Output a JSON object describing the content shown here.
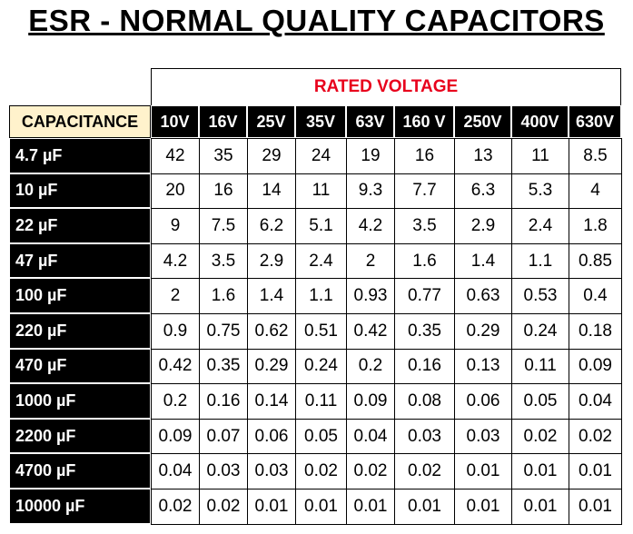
{
  "header": {
    "title": "ESR - NORMAL QUALITY CAPACITORS"
  },
  "table": {
    "group_header": "RATED VOLTAGE",
    "corner": "CAPACITANCE",
    "columns": [
      "10V",
      "16V",
      "25V",
      "35V",
      "63V",
      "160 V",
      "250V",
      "400V",
      "630V"
    ],
    "rows": [
      [
        "4.7 µF",
        42,
        35,
        29,
        24,
        19,
        16,
        13,
        11,
        8.5
      ],
      [
        "10 µF",
        20,
        16,
        14,
        11,
        9.3,
        7.7,
        6.3,
        5.3,
        4
      ],
      [
        "22 µF",
        9,
        7.5,
        6.2,
        5.1,
        4.2,
        3.5,
        2.9,
        2.4,
        1.8
      ],
      [
        "47 µF",
        4.2,
        3.5,
        2.9,
        2.4,
        2,
        1.6,
        1.4,
        1.1,
        0.85
      ],
      [
        "100 µF",
        2,
        1.6,
        1.4,
        1.1,
        0.93,
        0.77,
        0.63,
        0.53,
        0.4
      ],
      [
        "220 µF",
        0.9,
        0.75,
        0.62,
        0.51,
        0.42,
        0.35,
        0.29,
        0.24,
        0.18
      ],
      [
        "470 µF",
        0.42,
        0.35,
        0.29,
        0.24,
        0.2,
        0.16,
        0.13,
        0.11,
        0.09
      ],
      [
        "1000 µF",
        0.2,
        0.16,
        0.14,
        0.11,
        0.09,
        0.08,
        0.06,
        0.05,
        0.04
      ],
      [
        "2200 µF",
        0.09,
        0.07,
        0.06,
        0.05,
        0.04,
        0.03,
        0.03,
        0.02,
        0.02
      ],
      [
        "4700 µF",
        0.04,
        0.03,
        0.03,
        0.02,
        0.02,
        0.02,
        0.01,
        0.01,
        0.01
      ],
      [
        "10000 µF",
        0.02,
        0.02,
        0.01,
        0.01,
        0.01,
        0.01,
        0.01,
        0.01,
        0.01
      ]
    ]
  }
}
